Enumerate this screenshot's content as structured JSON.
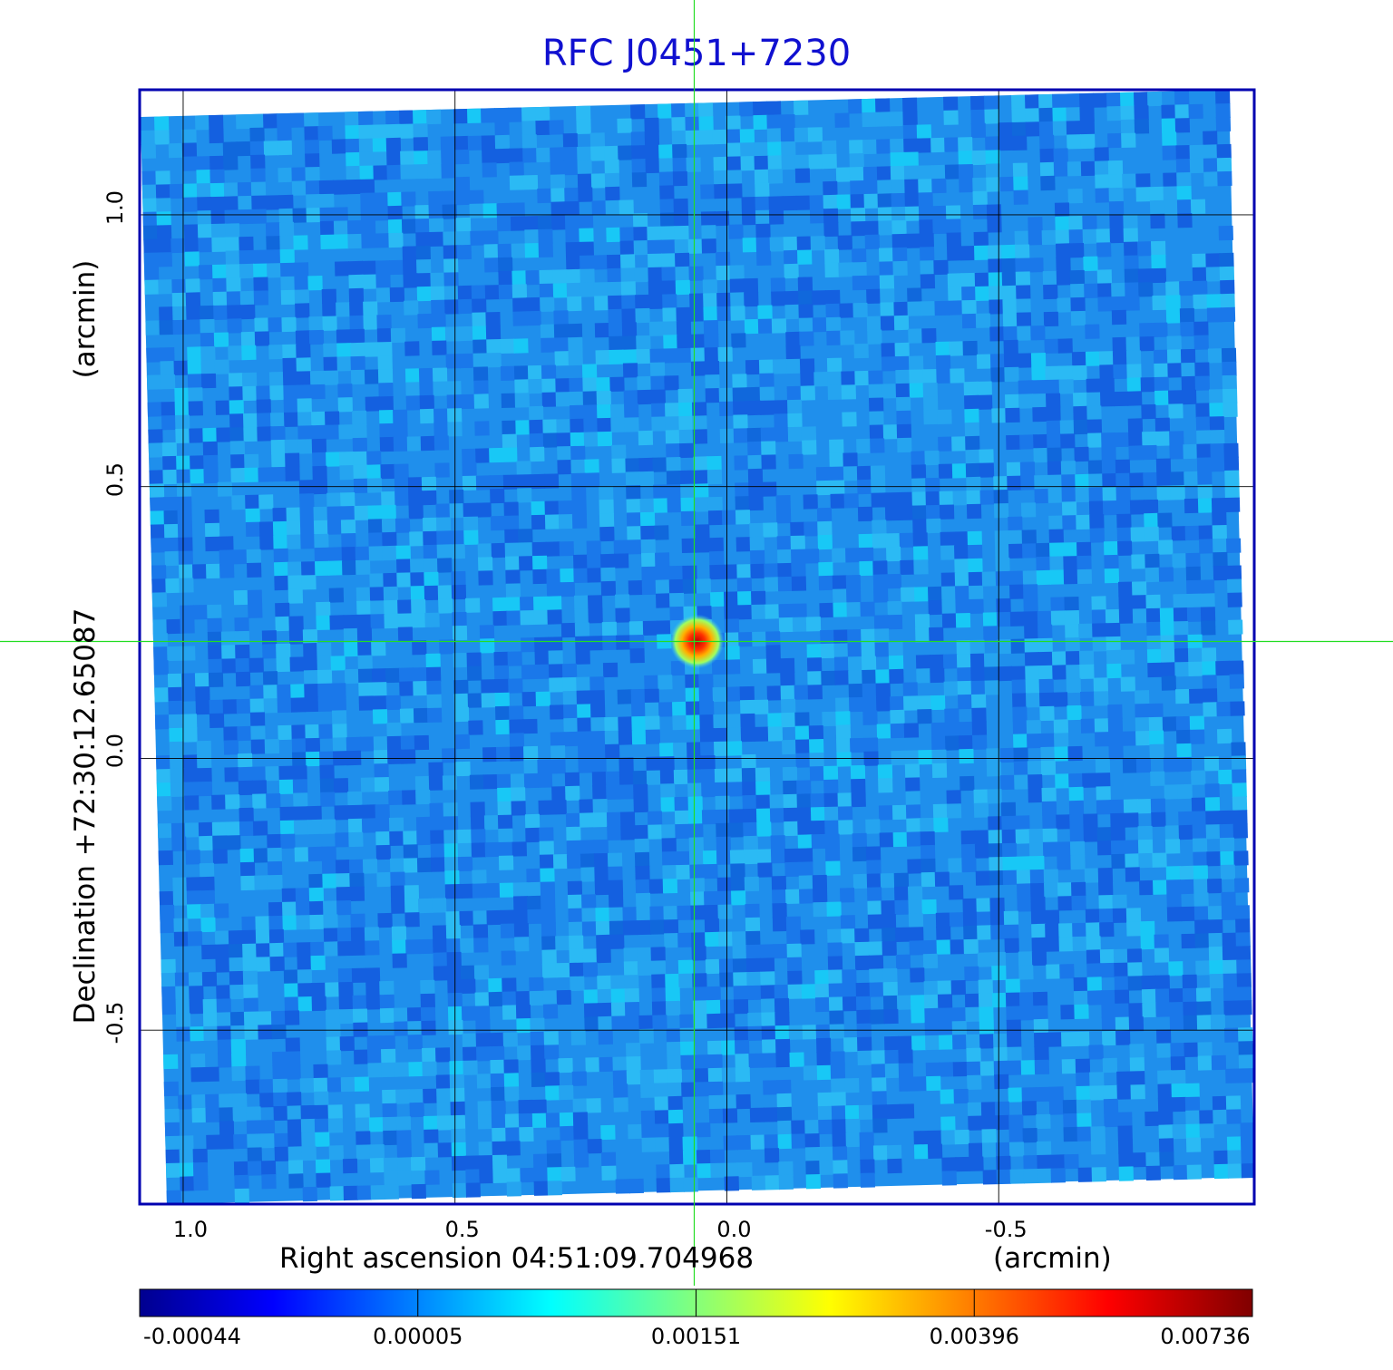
{
  "chart_data": {
    "type": "heatmap",
    "title": "RFC J0451+7230",
    "xlabel": "Right ascension  04:51:09.704968",
    "x_unit": "(arcmin)",
    "ylabel": "Declination  +72:30:12.65087",
    "y_unit": "(arcmin)",
    "x_ticks": [
      "1.0",
      "0.5",
      "0.0",
      "-0.5"
    ],
    "x_tick_values": [
      1.0,
      0.5,
      0.0,
      -0.5
    ],
    "y_ticks": [
      "1.0",
      "0.5",
      "0.0",
      "-0.5"
    ],
    "y_tick_values": [
      1.0,
      0.5,
      0.0,
      -0.5
    ],
    "xlim": [
      1.08,
      -0.97
    ],
    "ylim": [
      -0.82,
      1.23
    ],
    "grid": true,
    "crosshair": {
      "x": 0.06,
      "y": 0.215,
      "color": "#00dd00"
    },
    "source_peak": {
      "x": 0.055,
      "y": 0.215
    },
    "colorbar": {
      "ticks": [
        "-0.00044",
        "0.00005",
        "0.00151",
        "0.00396",
        "0.00736"
      ],
      "colormap": "jet"
    }
  }
}
